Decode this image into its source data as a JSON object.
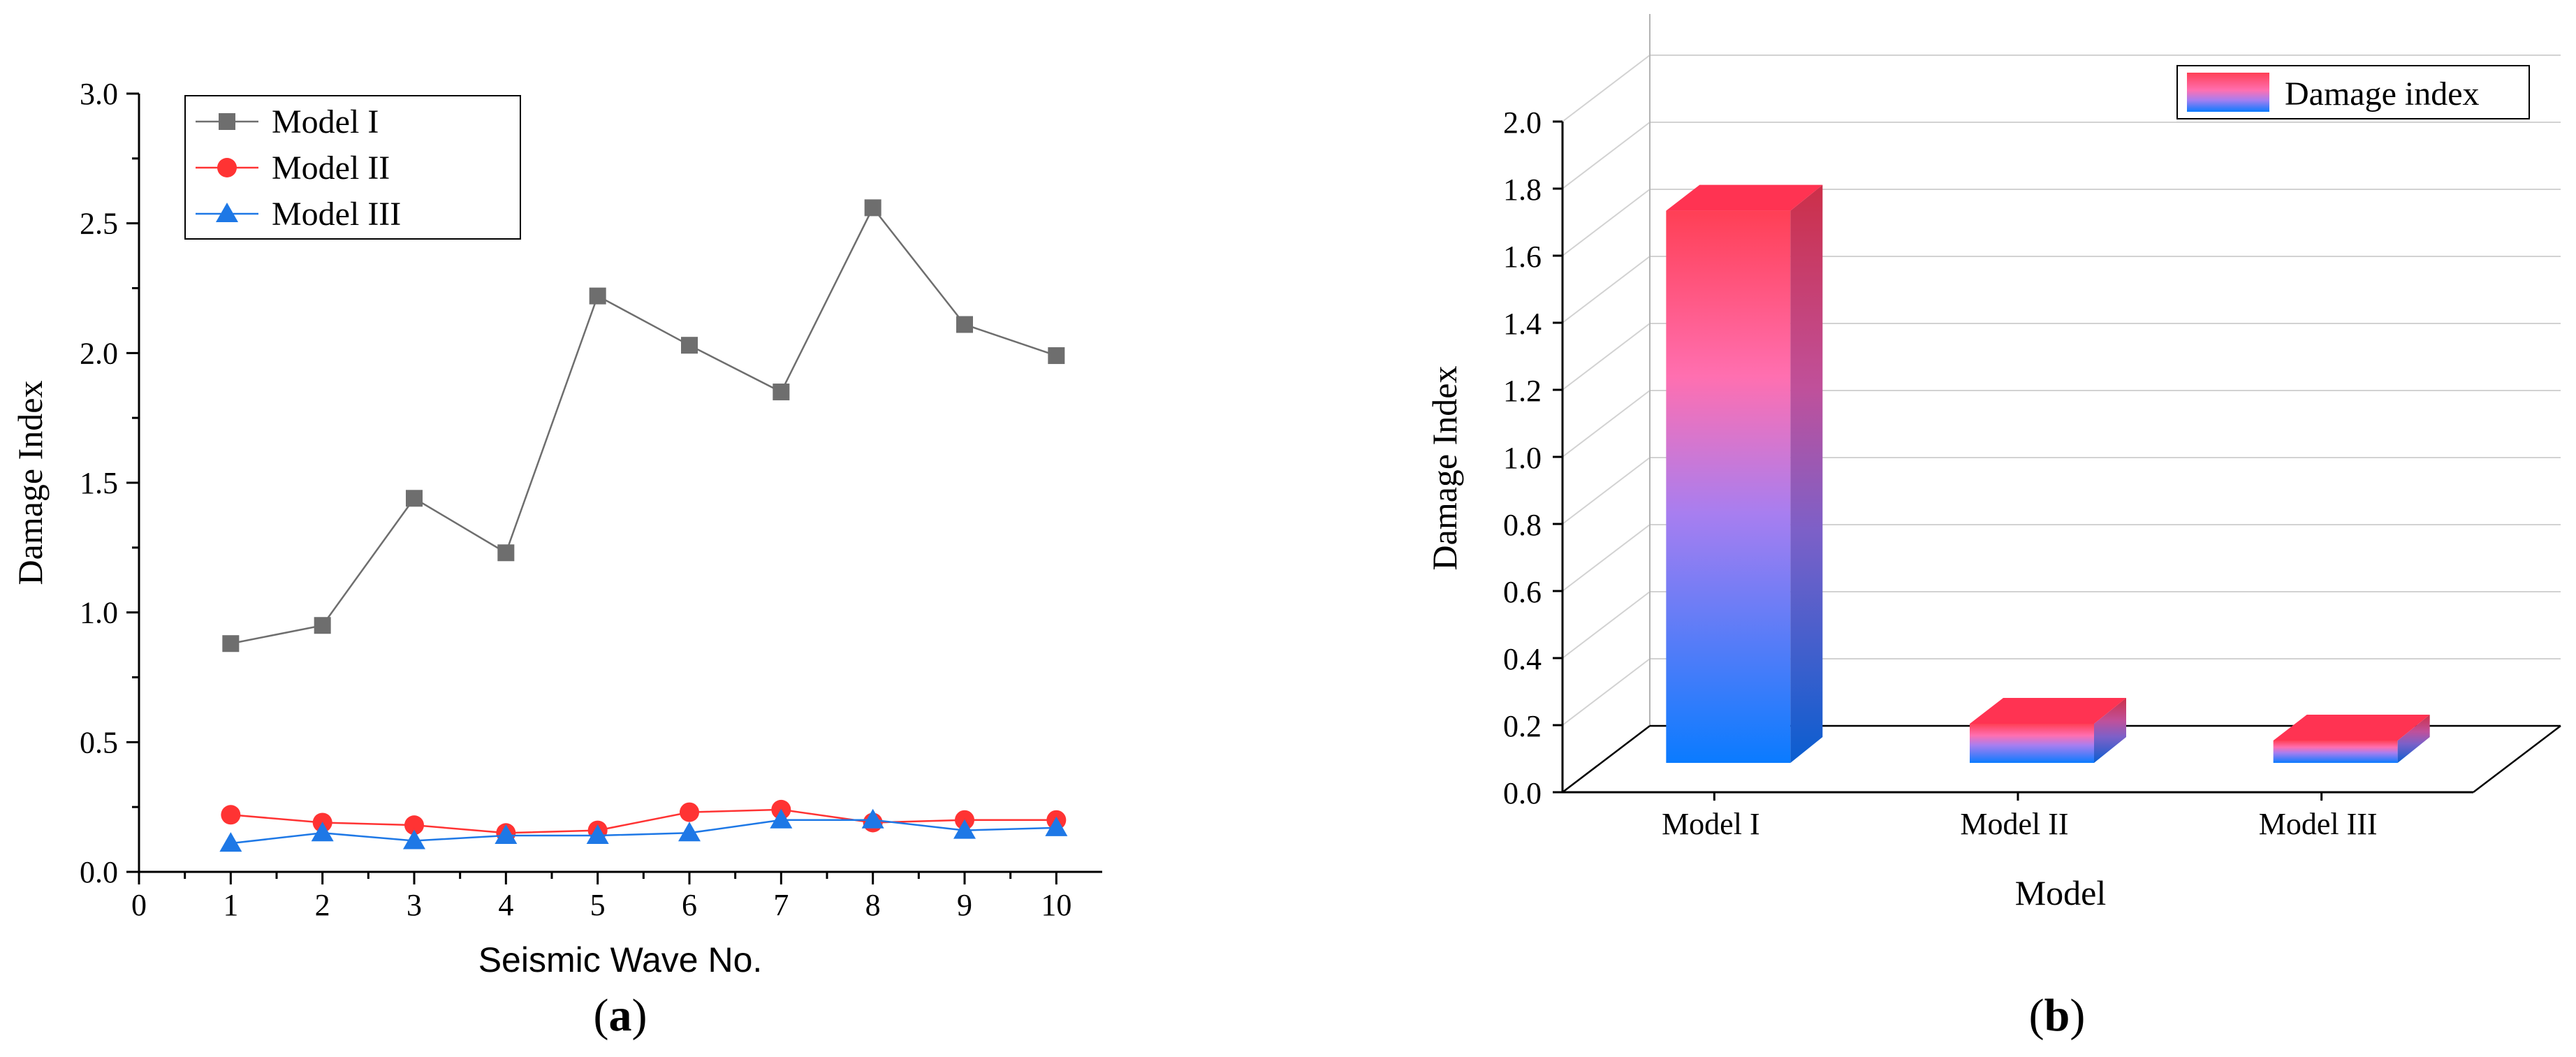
{
  "chart_data": [
    {
      "type": "line",
      "panel_label": "(a)",
      "panel_label_letter": "a",
      "xlabel": "Seismic Wave No.",
      "ylabel": "Damage Index",
      "xlim": [
        0,
        10.5
      ],
      "ylim": [
        0,
        3.0
      ],
      "x_ticks": [
        "0",
        "1",
        "2",
        "3",
        "4",
        "5",
        "6",
        "7",
        "8",
        "9",
        "10"
      ],
      "y_ticks": [
        "0.0",
        "0.5",
        "1.0",
        "1.5",
        "2.0",
        "2.5",
        "3.0"
      ],
      "x": [
        1,
        2,
        3,
        4,
        5,
        6,
        7,
        8,
        9,
        10
      ],
      "series": [
        {
          "name": "Model I",
          "marker": "square",
          "color": "#6e6e6e",
          "values": [
            0.88,
            0.95,
            1.44,
            1.23,
            2.22,
            2.03,
            1.85,
            2.56,
            2.11,
            1.99
          ]
        },
        {
          "name": "Model II",
          "marker": "circle",
          "color": "#ff3333",
          "values": [
            0.22,
            0.19,
            0.18,
            0.15,
            0.16,
            0.23,
            0.24,
            0.19,
            0.2,
            0.2
          ]
        },
        {
          "name": "Model III",
          "marker": "triangle",
          "color": "#1e78e6",
          "values": [
            0.11,
            0.15,
            0.12,
            0.14,
            0.14,
            0.15,
            0.2,
            0.2,
            0.16,
            0.17
          ]
        }
      ],
      "legend": "top-left"
    },
    {
      "type": "bar",
      "panel_label": "(b)",
      "panel_label_letter": "b",
      "xlabel": "Model",
      "ylabel": "Damage Index",
      "ylim": [
        0,
        2.0
      ],
      "y_ticks": [
        "0.0",
        "0.2",
        "0.4",
        "0.6",
        "0.8",
        "1.0",
        "1.2",
        "1.4",
        "1.6",
        "1.8",
        "2.0"
      ],
      "categories": [
        "Model I",
        "Model II",
        "Model III"
      ],
      "values": [
        1.73,
        0.2,
        0.15
      ],
      "legend_label": "Damage index",
      "legend": "top-right",
      "colors": {
        "top": "#ff3f55",
        "mid": "#ff6fb0",
        "low": "#a77ef0",
        "bottom": "#0a7bff"
      }
    }
  ]
}
